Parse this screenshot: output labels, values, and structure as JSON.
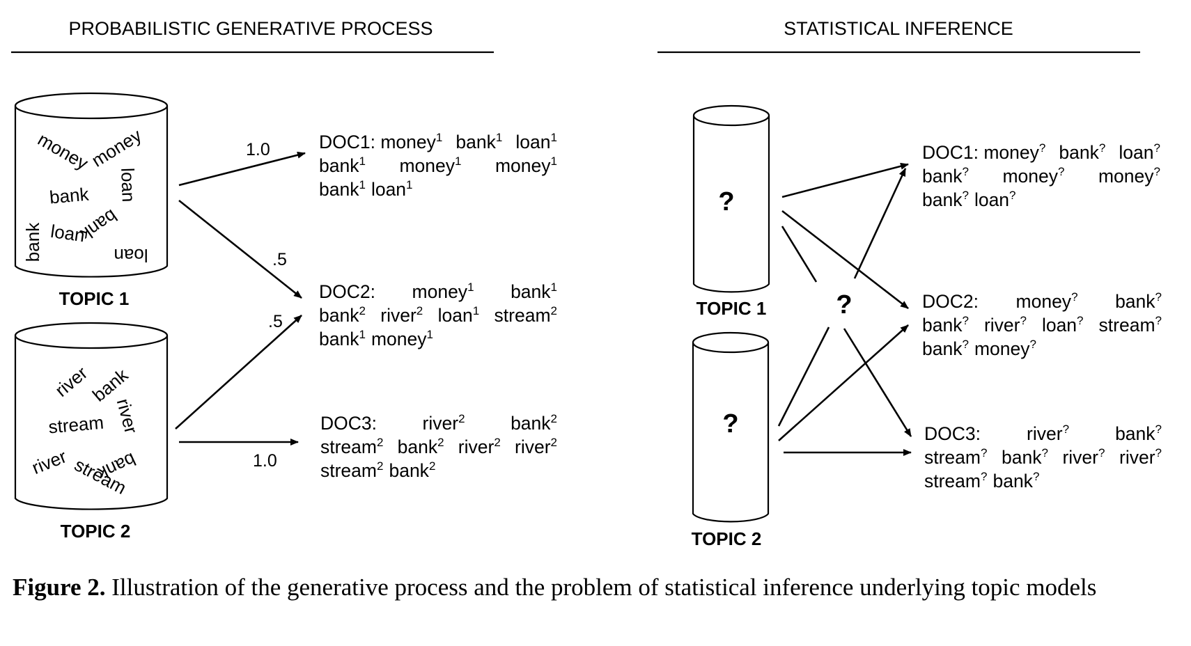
{
  "headers": {
    "left": "PROBABILISTIC GENERATIVE PROCESS",
    "right": "STATISTICAL INFERENCE"
  },
  "topics": {
    "topic1_label": "TOPIC 1",
    "topic2_label": "TOPIC 2",
    "topic1_words": [
      "money",
      "money",
      "loan",
      "bank",
      "bank",
      "loan",
      "bank",
      "loan"
    ],
    "topic2_words": [
      "river",
      "bank",
      "river",
      "stream",
      "river",
      "bank",
      "stream"
    ]
  },
  "edge_weights": {
    "t1_doc1": "1.0",
    "t1_doc2": ".5",
    "t2_doc2": ".5",
    "t2_doc3": "1.0"
  },
  "generative_docs": {
    "doc1": [
      [
        [
          "DOC1: money",
          "1"
        ],
        [
          "bank",
          "1"
        ],
        [
          "loan",
          "1"
        ]
      ],
      [
        [
          "bank",
          "1"
        ],
        [
          "money",
          "1"
        ],
        [
          "money",
          "1"
        ]
      ],
      [
        [
          "bank",
          "1"
        ],
        [
          "loan",
          "1"
        ]
      ]
    ],
    "doc2": [
      [
        [
          "DOC2:",
          ""
        ],
        [
          "money",
          "1"
        ],
        [
          "bank",
          "1"
        ]
      ],
      [
        [
          "bank",
          "2"
        ],
        [
          "river",
          "2"
        ],
        [
          "loan",
          "1"
        ],
        [
          "stream",
          "2"
        ]
      ],
      [
        [
          "bank",
          "1"
        ],
        [
          "money",
          "1"
        ]
      ]
    ],
    "doc3": [
      [
        [
          "DOC3:",
          ""
        ],
        [
          "river",
          "2"
        ],
        [
          "bank",
          "2"
        ]
      ],
      [
        [
          "stream",
          "2"
        ],
        [
          "bank",
          "2"
        ],
        [
          "river",
          "2"
        ],
        [
          "river",
          "2"
        ]
      ],
      [
        [
          "stream",
          "2"
        ],
        [
          "bank",
          "2"
        ]
      ]
    ]
  },
  "inference_docs": {
    "doc1": [
      [
        [
          "DOC1: money",
          "?"
        ],
        [
          "bank",
          "?"
        ],
        [
          "loan",
          "?"
        ]
      ],
      [
        [
          "bank",
          "?"
        ],
        [
          "money",
          "?"
        ],
        [
          "money",
          "?"
        ]
      ],
      [
        [
          "bank",
          "?"
        ],
        [
          "loan",
          "?"
        ]
      ]
    ],
    "doc2": [
      [
        [
          "DOC2:",
          ""
        ],
        [
          "money",
          "?"
        ],
        [
          "bank",
          "?"
        ]
      ],
      [
        [
          "bank",
          "?"
        ],
        [
          "river",
          "?"
        ],
        [
          "loan",
          "?"
        ],
        [
          "stream",
          "?"
        ]
      ],
      [
        [
          "bank",
          "?"
        ],
        [
          "money",
          "?"
        ]
      ]
    ],
    "doc3": [
      [
        [
          "DOC3:",
          ""
        ],
        [
          "river",
          "?"
        ],
        [
          "bank",
          "?"
        ]
      ],
      [
        [
          "stream",
          "?"
        ],
        [
          "bank",
          "?"
        ],
        [
          "river",
          "?"
        ],
        [
          "river",
          "?"
        ]
      ],
      [
        [
          "stream",
          "?"
        ],
        [
          "bank",
          "?"
        ]
      ]
    ]
  },
  "inference": {
    "unknown_topic1": "?",
    "unknown_topic2": "?",
    "unknown_mixture": "?"
  },
  "caption": {
    "label": "Figure 2.",
    "text": " Illustration of the generative process and the problem of statistical inference underlying topic models"
  }
}
